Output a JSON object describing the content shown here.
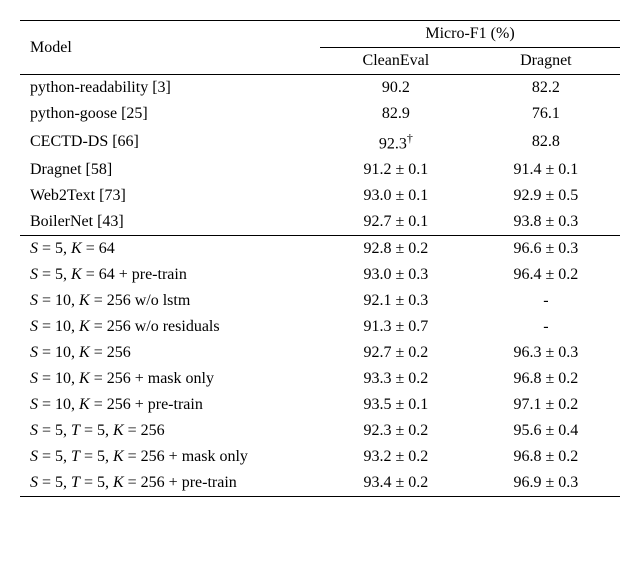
{
  "header": {
    "model": "Model",
    "metric": "Micro-F1 (%)",
    "col1": "CleanEval",
    "col2": "Dragnet"
  },
  "section1": [
    {
      "model": "python-readability [3]",
      "c1": "90.2",
      "c2": "82.2"
    },
    {
      "model": "python-goose [25]",
      "c1": "82.9",
      "c2": "76.1"
    },
    {
      "model": "CECTD-DS [66]",
      "c1": "92.3",
      "c1_sup": "†",
      "c2": "82.8"
    },
    {
      "model": "Dragnet [58]",
      "c1": "91.2 ± 0.1",
      "c2": "91.4 ± 0.1"
    },
    {
      "model": "Web2Text [73]",
      "c1": "93.0 ± 0.1",
      "c2": "92.9 ± 0.5"
    },
    {
      "model": "BoilerNet [43]",
      "c1": "92.7 ± 0.1",
      "c2": "93.8 ± 0.3"
    }
  ],
  "section2": [
    {
      "model_html": "<span class=\"italic\">S</span> = 5, <span class=\"italic\">K</span> = 64",
      "c1": "92.8 ± 0.2",
      "c2": "96.6 ± 0.3"
    },
    {
      "model_html": "<span class=\"italic\">S</span> = 5, <span class=\"italic\">K</span> = 64 + pre-train",
      "c1": "93.0 ± 0.3",
      "c2": "96.4 ± 0.2"
    },
    {
      "model_html": "<span class=\"italic\">S</span> = 10, <span class=\"italic\">K</span> = 256 w/o lstm",
      "c1": "92.1 ± 0.3",
      "c2": "-"
    },
    {
      "model_html": "<span class=\"italic\">S</span> = 10, <span class=\"italic\">K</span> = 256 w/o residuals",
      "c1": "91.3 ± 0.7",
      "c2": "-"
    },
    {
      "model_html": "<span class=\"italic\">S</span> = 10, <span class=\"italic\">K</span> = 256",
      "c1": "92.7 ± 0.2",
      "c2": "96.3 ± 0.3"
    },
    {
      "model_html": "<span class=\"italic\">S</span> = 10, <span class=\"italic\">K</span> = 256 + mask only",
      "c1": "93.3 ± 0.2",
      "c2": "96.8 ± 0.2"
    },
    {
      "model_html": "<span class=\"italic\">S</span> = 10, <span class=\"italic\">K</span> = 256 + pre-train",
      "c1": "93.5 ± 0.1",
      "c2": "97.1 ± 0.2"
    },
    {
      "model_html": "<span class=\"italic\">S</span> = 5, <span class=\"italic\">T</span> = 5, <span class=\"italic\">K</span> = 256",
      "c1": "92.3 ± 0.2",
      "c2": "95.6 ± 0.4"
    },
    {
      "model_html": "<span class=\"italic\">S</span> = 5, <span class=\"italic\">T</span> = 5, <span class=\"italic\">K</span> = 256 + mask only",
      "c1": "93.2 ± 0.2",
      "c2": "96.8 ± 0.2"
    },
    {
      "model_html": "<span class=\"italic\">S</span> = 5, <span class=\"italic\">T</span> = 5, <span class=\"italic\">K</span> = 256 + pre-train",
      "c1": "93.4 ± 0.2",
      "c2": "96.9 ± 0.3"
    }
  ],
  "style": {
    "background": "#ffffff",
    "text_color": "#000000",
    "rule_color": "#000000",
    "font_family": "Times New Roman"
  }
}
